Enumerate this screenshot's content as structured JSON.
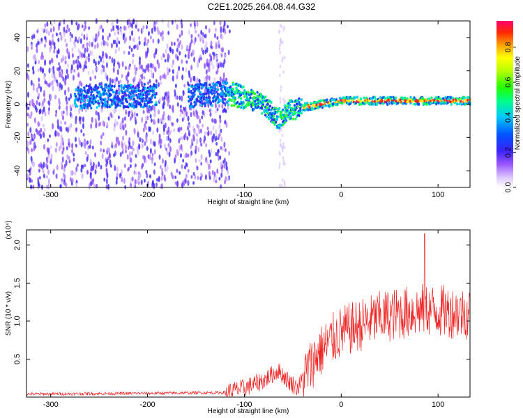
{
  "title": "C2E1.2025.264.08.44.G32",
  "chart_data": [
    {
      "type": "heatmap",
      "xlabel": "Height of straight line (km)",
      "ylabel": "Frequency (Hz)",
      "xlim": [
        -325,
        133
      ],
      "ylim": [
        -50,
        50
      ],
      "x_ticks": [
        -300,
        -200,
        -100,
        0,
        100
      ],
      "y_ticks": [
        -40,
        -20,
        0,
        20,
        40
      ],
      "colorbar": {
        "label": "Normalized spectral amplitude",
        "range": [
          0,
          0.95
        ],
        "ticks": [
          0.0,
          0.2,
          0.4,
          0.6,
          0.8
        ]
      },
      "ridge": [
        {
          "x": -270,
          "y": 4
        },
        {
          "x": -240,
          "y": 5
        },
        {
          "x": -220,
          "y": 5
        },
        {
          "x": -195,
          "y": 5
        },
        {
          "x": -150,
          "y": 5
        },
        {
          "x": -120,
          "y": 7
        },
        {
          "x": -100,
          "y": 4
        },
        {
          "x": -85,
          "y": 1
        },
        {
          "x": -75,
          "y": -3
        },
        {
          "x": -65,
          "y": -9
        },
        {
          "x": -55,
          "y": -4
        },
        {
          "x": -40,
          "y": -2
        },
        {
          "x": -20,
          "y": 0
        },
        {
          "x": 0,
          "y": 2
        },
        {
          "x": 50,
          "y": 2
        },
        {
          "x": 133,
          "y": 2
        }
      ]
    },
    {
      "type": "line",
      "xlabel": "Height of straight line (km)",
      "ylabel": "SNR (10 * v/v)",
      "multiplier": "(x10⁴)",
      "xlim": [
        -325,
        133
      ],
      "ylim": [
        0,
        2.2
      ],
      "x_ticks": [
        -300,
        -200,
        -100,
        0,
        100
      ],
      "y_ticks": [
        0.5,
        1.0,
        1.5,
        2.0
      ],
      "y_tick_labels": [
        "0.5",
        "1.0",
        "1.5",
        "2.0"
      ],
      "color": "#ee2222",
      "envelope": [
        {
          "x": -325,
          "y": 0.04
        },
        {
          "x": -200,
          "y": 0.05
        },
        {
          "x": -120,
          "y": 0.06
        },
        {
          "x": -100,
          "y": 0.12
        },
        {
          "x": -80,
          "y": 0.22
        },
        {
          "x": -65,
          "y": 0.35
        },
        {
          "x": -55,
          "y": 0.22
        },
        {
          "x": -45,
          "y": 0.12
        },
        {
          "x": -35,
          "y": 0.35
        },
        {
          "x": -25,
          "y": 0.55
        },
        {
          "x": -10,
          "y": 0.75
        },
        {
          "x": 0,
          "y": 0.85
        },
        {
          "x": 20,
          "y": 0.95
        },
        {
          "x": 40,
          "y": 1.05
        },
        {
          "x": 60,
          "y": 1.1
        },
        {
          "x": 85,
          "y": 1.15
        },
        {
          "x": 133,
          "y": 1.1
        }
      ],
      "peak": {
        "x": 86,
        "y": 2.15
      }
    }
  ]
}
